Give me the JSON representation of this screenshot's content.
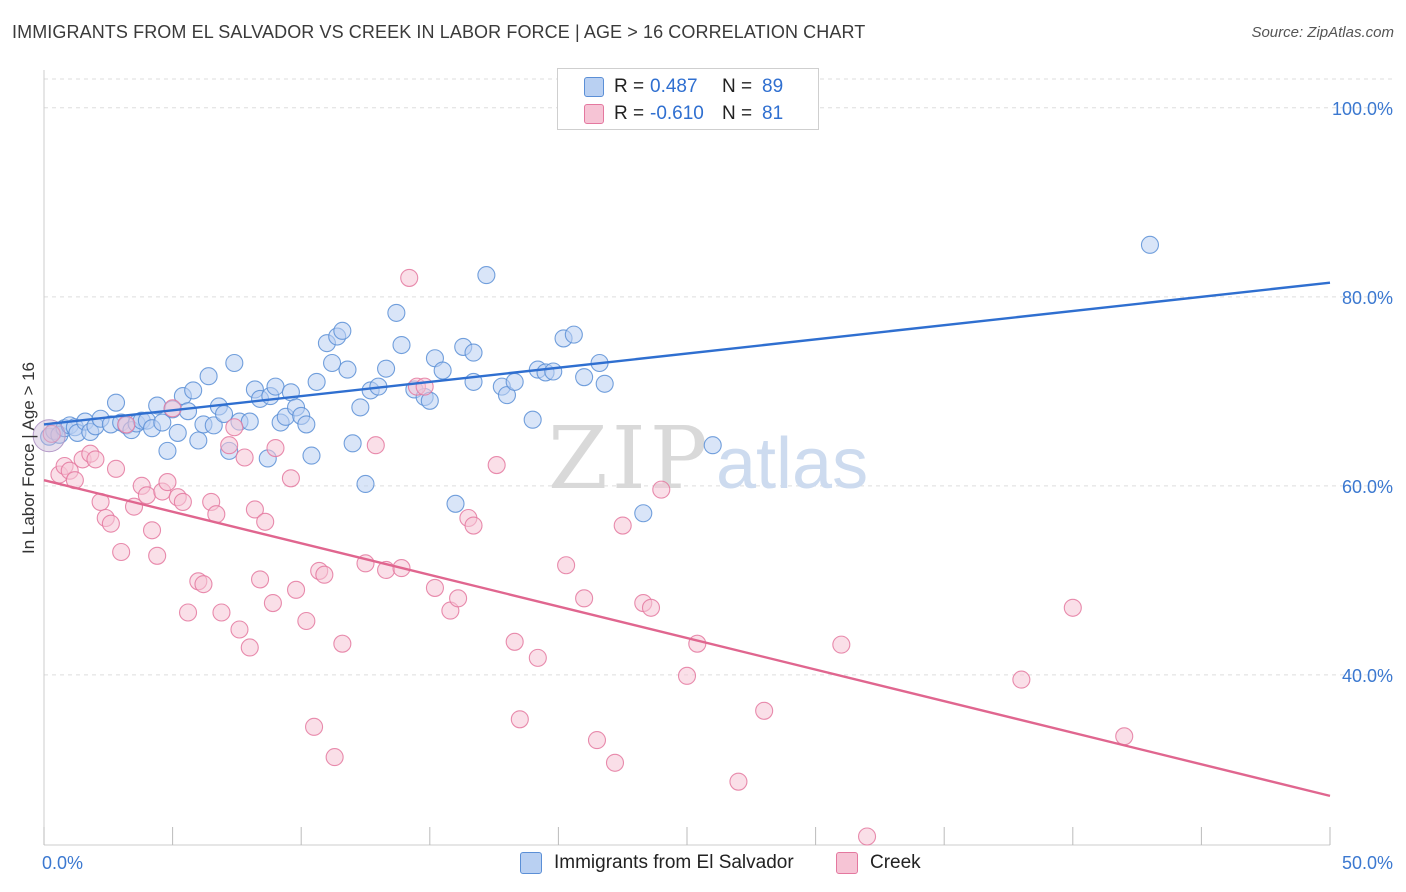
{
  "header": {
    "title": "IMMIGRANTS FROM EL SALVADOR VS CREEK IN LABOR FORCE | AGE > 16 CORRELATION CHART",
    "source": "Source: ZipAtlas.com"
  },
  "watermark": {
    "zip": "ZIP",
    "atlas": "atlas"
  },
  "legend": {
    "r_label": "R =",
    "n_label": "N =",
    "rows": [
      {
        "r": "0.487",
        "n": "89",
        "color": "#5b8fd6",
        "fill": "#b9d0f2"
      },
      {
        "r": "-0.610",
        "n": "81",
        "color": "#e4789f",
        "fill": "#f6c4d5"
      }
    ]
  },
  "colors": {
    "blue_line": "#2f6fd0",
    "pink_line": "#e0668f",
    "tick_label": "#3b78d0",
    "grid": "#dddddd"
  },
  "chart_data": {
    "type": "scatter",
    "title": "IMMIGRANTS FROM EL SALVADOR VS CREEK IN LABOR FORCE | AGE > 16 CORRELATION CHART",
    "xlabel": "",
    "ylabel": "In Labor Force | Age > 16",
    "xlim": [
      0,
      50
    ],
    "ylim": [
      22,
      104
    ],
    "x_tick_labels": [
      "0.0%",
      "50.0%"
    ],
    "y_ticks": [
      40,
      60,
      80,
      100
    ],
    "y_tick_labels": [
      "40.0%",
      "60.0%",
      "80.0%",
      "100.0%"
    ],
    "grid": true,
    "legend_position": "top-center",
    "series": [
      {
        "name": "Immigrants from El Salvador",
        "color": "#5b8fd6",
        "fill": "#b9d0f2",
        "trend": {
          "x": [
            0,
            50
          ],
          "y": [
            66.5,
            81.5
          ]
        },
        "points": [
          [
            0.2,
            65.2
          ],
          [
            0.4,
            65.8
          ],
          [
            0.6,
            65.4
          ],
          [
            0.8,
            66.1
          ],
          [
            1.0,
            66.4
          ],
          [
            1.2,
            66.2
          ],
          [
            1.3,
            65.6
          ],
          [
            1.6,
            66.8
          ],
          [
            1.8,
            65.7
          ],
          [
            2.0,
            66.3
          ],
          [
            2.2,
            67.1
          ],
          [
            2.6,
            66.5
          ],
          [
            2.8,
            68.8
          ],
          [
            3.0,
            66.7
          ],
          [
            3.2,
            66.4
          ],
          [
            3.4,
            65.9
          ],
          [
            3.6,
            66.6
          ],
          [
            3.8,
            66.9
          ],
          [
            4.0,
            66.9
          ],
          [
            4.2,
            66.1
          ],
          [
            4.4,
            68.5
          ],
          [
            4.6,
            66.7
          ],
          [
            4.8,
            63.7
          ],
          [
            5.0,
            68.1
          ],
          [
            5.2,
            65.6
          ],
          [
            5.4,
            69.5
          ],
          [
            5.6,
            67.9
          ],
          [
            5.8,
            70.1
          ],
          [
            6.0,
            64.8
          ],
          [
            6.2,
            66.5
          ],
          [
            6.4,
            71.6
          ],
          [
            6.6,
            66.4
          ],
          [
            6.8,
            68.4
          ],
          [
            7.0,
            67.6
          ],
          [
            7.2,
            63.7
          ],
          [
            7.4,
            73.0
          ],
          [
            7.6,
            66.8
          ],
          [
            8.0,
            66.8
          ],
          [
            8.2,
            70.2
          ],
          [
            8.4,
            69.2
          ],
          [
            8.7,
            62.9
          ],
          [
            8.8,
            69.5
          ],
          [
            9.0,
            70.5
          ],
          [
            9.2,
            66.7
          ],
          [
            9.4,
            67.3
          ],
          [
            9.6,
            69.9
          ],
          [
            9.8,
            68.3
          ],
          [
            10.0,
            67.4
          ],
          [
            10.2,
            66.5
          ],
          [
            10.4,
            63.2
          ],
          [
            10.6,
            71.0
          ],
          [
            11.0,
            75.1
          ],
          [
            11.2,
            73.0
          ],
          [
            11.4,
            75.8
          ],
          [
            11.6,
            76.4
          ],
          [
            11.8,
            72.3
          ],
          [
            12.0,
            64.5
          ],
          [
            12.3,
            68.3
          ],
          [
            12.5,
            60.2
          ],
          [
            12.7,
            70.1
          ],
          [
            13.0,
            70.5
          ],
          [
            13.3,
            72.4
          ],
          [
            13.7,
            78.3
          ],
          [
            13.9,
            74.9
          ],
          [
            14.4,
            70.2
          ],
          [
            14.8,
            69.4
          ],
          [
            15.0,
            69.0
          ],
          [
            15.2,
            73.5
          ],
          [
            15.5,
            72.2
          ],
          [
            16.0,
            58.1
          ],
          [
            16.3,
            74.7
          ],
          [
            16.7,
            74.1
          ],
          [
            16.7,
            71.0
          ],
          [
            17.2,
            82.3
          ],
          [
            17.8,
            70.5
          ],
          [
            18.0,
            69.6
          ],
          [
            18.3,
            71.0
          ],
          [
            19.0,
            67.0
          ],
          [
            19.2,
            72.3
          ],
          [
            19.5,
            72.0
          ],
          [
            19.8,
            72.1
          ],
          [
            20.2,
            75.6
          ],
          [
            20.6,
            76.0
          ],
          [
            21.0,
            71.5
          ],
          [
            21.6,
            73.0
          ],
          [
            21.8,
            70.8
          ],
          [
            23.3,
            57.1
          ],
          [
            26.0,
            64.3
          ],
          [
            43.0,
            85.5
          ]
        ]
      },
      {
        "name": "Creek",
        "color": "#e4789f",
        "fill": "#f6c4d5",
        "trend": {
          "x": [
            0,
            50
          ],
          "y": [
            60.6,
            27.2
          ]
        },
        "points": [
          [
            0.3,
            65.5
          ],
          [
            0.6,
            61.2
          ],
          [
            0.8,
            62.1
          ],
          [
            1.0,
            61.6
          ],
          [
            1.2,
            60.6
          ],
          [
            1.5,
            62.8
          ],
          [
            1.8,
            63.4
          ],
          [
            2.0,
            62.8
          ],
          [
            2.2,
            58.3
          ],
          [
            2.4,
            56.6
          ],
          [
            2.6,
            56.0
          ],
          [
            2.8,
            61.8
          ],
          [
            3.0,
            53.0
          ],
          [
            3.2,
            66.5
          ],
          [
            3.5,
            57.8
          ],
          [
            3.8,
            60.0
          ],
          [
            4.0,
            59.0
          ],
          [
            4.2,
            55.3
          ],
          [
            4.4,
            52.6
          ],
          [
            4.6,
            59.4
          ],
          [
            4.8,
            60.4
          ],
          [
            5.0,
            68.2
          ],
          [
            5.2,
            58.8
          ],
          [
            5.4,
            58.3
          ],
          [
            5.6,
            46.6
          ],
          [
            6.0,
            49.9
          ],
          [
            6.2,
            49.6
          ],
          [
            6.5,
            58.3
          ],
          [
            6.7,
            57.0
          ],
          [
            6.9,
            46.6
          ],
          [
            7.2,
            64.3
          ],
          [
            7.4,
            66.2
          ],
          [
            7.6,
            44.8
          ],
          [
            7.8,
            63.0
          ],
          [
            8.0,
            42.9
          ],
          [
            8.2,
            57.5
          ],
          [
            8.4,
            50.1
          ],
          [
            8.6,
            56.2
          ],
          [
            8.9,
            47.6
          ],
          [
            9.0,
            64.0
          ],
          [
            9.6,
            60.8
          ],
          [
            9.8,
            49.0
          ],
          [
            10.2,
            45.7
          ],
          [
            10.5,
            34.5
          ],
          [
            10.7,
            51.0
          ],
          [
            10.9,
            50.6
          ],
          [
            11.3,
            31.3
          ],
          [
            11.6,
            43.3
          ],
          [
            12.5,
            51.8
          ],
          [
            12.9,
            64.3
          ],
          [
            13.3,
            51.1
          ],
          [
            13.9,
            51.3
          ],
          [
            14.2,
            82.0
          ],
          [
            14.5,
            70.5
          ],
          [
            14.8,
            70.5
          ],
          [
            15.2,
            49.2
          ],
          [
            15.8,
            46.8
          ],
          [
            16.1,
            48.1
          ],
          [
            16.5,
            56.6
          ],
          [
            16.7,
            55.8
          ],
          [
            17.6,
            62.2
          ],
          [
            18.3,
            43.5
          ],
          [
            18.5,
            35.3
          ],
          [
            19.2,
            41.8
          ],
          [
            20.3,
            51.6
          ],
          [
            21.0,
            48.1
          ],
          [
            21.5,
            33.1
          ],
          [
            22.2,
            30.7
          ],
          [
            22.5,
            55.8
          ],
          [
            23.3,
            47.6
          ],
          [
            23.6,
            47.1
          ],
          [
            24.0,
            59.6
          ],
          [
            25.0,
            39.9
          ],
          [
            25.4,
            43.3
          ],
          [
            27.0,
            28.7
          ],
          [
            28.0,
            36.2
          ],
          [
            31.0,
            43.2
          ],
          [
            32.0,
            22.9
          ],
          [
            38.0,
            39.5
          ],
          [
            40.0,
            47.1
          ],
          [
            42.0,
            33.5
          ]
        ]
      }
    ]
  }
}
